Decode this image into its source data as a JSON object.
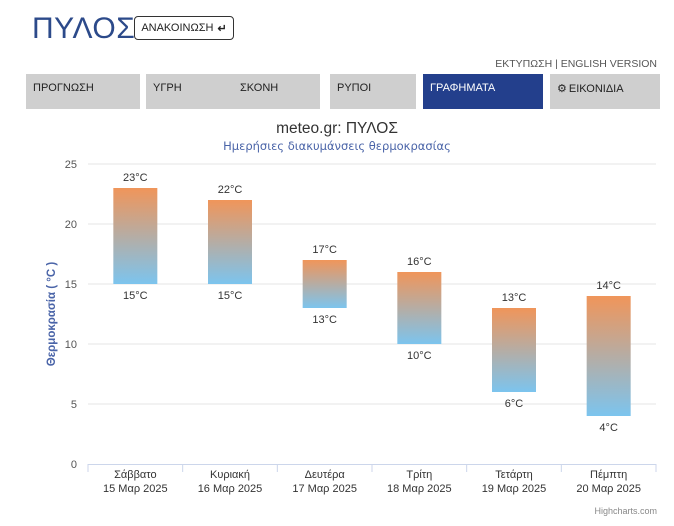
{
  "header": {
    "title": "ΠΥΛΟΣ",
    "announce_label": "ΑΝΑΚΟΙΝΩΣΗ",
    "announce_icon": "arrow-return-icon"
  },
  "toplinks": {
    "print": "ΕΚΤΥΠΩΣΗ",
    "separator": " | ",
    "english": "ENGLISH VERSION"
  },
  "tabs": [
    {
      "label": "ΠΡΟΓΝΩΣΗ",
      "active": false
    },
    {
      "label": "ΥΓΡΗ",
      "active": false
    },
    {
      "label": "ΣΚΟΝΗ",
      "active": false
    },
    {
      "label": "ΡΥΠΟΙ",
      "active": false
    },
    {
      "label": "ΓΡΑΦΗΜΑΤΑ",
      "active": true
    },
    {
      "label": "ΕΙΚΟΝΙΔΙΑ",
      "active": false,
      "icon": "gear-icon"
    }
  ],
  "colors": {
    "brand": "#233f8c",
    "bar_top": "#f0955a",
    "bar_bottom": "#7cc4ee",
    "tab_inactive": "#cfcfcf"
  },
  "chart_data": {
    "type": "columnrange",
    "title": "meteo.gr: ΠΥΛΟΣ",
    "subtitle": "Ημερήσιες διακυμάνσεις θερμοκρασίας",
    "ylabel": "Θερμοκρασία ( °C )",
    "ylim": [
      0,
      25
    ],
    "yticks": [
      0,
      5,
      10,
      15,
      20,
      25
    ],
    "grid": true,
    "categories": [
      {
        "day": "Σάββατο",
        "date": "15 Μαρ 2025"
      },
      {
        "day": "Κυριακή",
        "date": "16 Μαρ 2025"
      },
      {
        "day": "Δευτέρα",
        "date": "17 Μαρ 2025"
      },
      {
        "day": "Τρίτη",
        "date": "18 Μαρ 2025"
      },
      {
        "day": "Τετάρτη",
        "date": "19 Μαρ 2025"
      },
      {
        "day": "Πέμπτη",
        "date": "20 Μαρ 2025"
      }
    ],
    "low": [
      15,
      15,
      13,
      10,
      6,
      4
    ],
    "high": [
      23,
      22,
      17,
      16,
      13,
      14
    ],
    "unit": "°C"
  },
  "credits": "Highcharts.com"
}
